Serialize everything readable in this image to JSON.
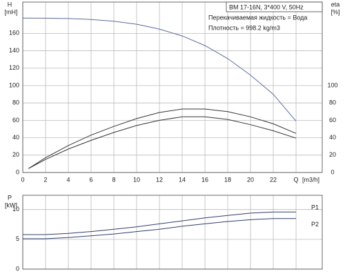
{
  "chart_data": [
    {
      "type": "line",
      "ylabel": "H",
      "ylabel_unit": "[mH]",
      "y2label": "eta",
      "y2label_unit": "[%]",
      "annotations": [
        "BM 17-16N, 3*400 V, 50Hz",
        "Перекачиваемая жидкость = Вода",
        "Плотность = 998.2 kg/m3"
      ],
      "xlabel_unit": "[m3/h]",
      "xlim": [
        0,
        26.3
      ],
      "xticks": [
        0,
        2,
        4,
        6,
        8,
        10,
        12,
        14,
        16,
        18,
        20,
        22,
        {
          "value": 24,
          "label": "Q"
        }
      ],
      "ylim": [
        0,
        196
      ],
      "yticks": [
        0,
        20,
        40,
        60,
        80,
        100,
        120,
        140,
        160
      ],
      "y2lim": [
        0,
        196
      ],
      "y2ticks": [
        0,
        20,
        40,
        60,
        80,
        100
      ],
      "grid": true,
      "series": [
        {
          "color": "#5a6a9c",
          "x": [
            0,
            2,
            4,
            6,
            8,
            10,
            12,
            14,
            16,
            18,
            20,
            22,
            24
          ],
          "values": [
            177.5,
            177.4,
            177,
            176,
            174,
            170.5,
            165,
            157,
            146,
            131,
            112,
            90,
            59
          ]
        },
        {
          "color": "#333333",
          "axis": "y2",
          "x": [
            0.5,
            2,
            4,
            6,
            8,
            10,
            12,
            14,
            16,
            18,
            20,
            22,
            24
          ],
          "values": [
            4.5,
            17,
            31,
            43,
            53,
            62,
            69,
            73,
            73,
            70,
            64,
            56,
            45
          ]
        },
        {
          "color": "#333333",
          "axis": "y2",
          "x": [
            0.5,
            2,
            4,
            6,
            8,
            10,
            12,
            14,
            16,
            18,
            20,
            22,
            24
          ],
          "values": [
            4.5,
            15,
            27,
            37,
            46,
            54,
            60,
            64,
            64,
            61,
            55,
            48,
            39.5
          ]
        }
      ]
    },
    {
      "type": "line",
      "ylabel": "P",
      "ylabel_unit": "[kW]",
      "xlim": [
        0,
        26.3
      ],
      "xticks": [
        0,
        2,
        4,
        6,
        8,
        10,
        12,
        14,
        16,
        18,
        20,
        22,
        24
      ],
      "xtick_labels": false,
      "ylim": [
        0,
        12.4
      ],
      "yticks": [
        0,
        5,
        10
      ],
      "grid": true,
      "series": [
        {
          "name": "P1",
          "color": "#2e3d6e",
          "x": [
            0,
            2,
            4,
            6,
            8,
            10,
            12,
            14,
            16,
            18,
            20,
            22,
            24
          ],
          "values": [
            5.8,
            5.8,
            6.0,
            6.3,
            6.7,
            7.1,
            7.6,
            8.1,
            8.6,
            9.0,
            9.4,
            9.6,
            9.6
          ]
        },
        {
          "name": "P2",
          "color": "#2e3d6e",
          "x": [
            0,
            2,
            4,
            6,
            8,
            10,
            12,
            14,
            16,
            18,
            20,
            22,
            24
          ],
          "values": [
            5.1,
            5.1,
            5.3,
            5.6,
            5.9,
            6.3,
            6.7,
            7.2,
            7.6,
            8.0,
            8.3,
            8.5,
            8.5
          ]
        }
      ]
    }
  ]
}
